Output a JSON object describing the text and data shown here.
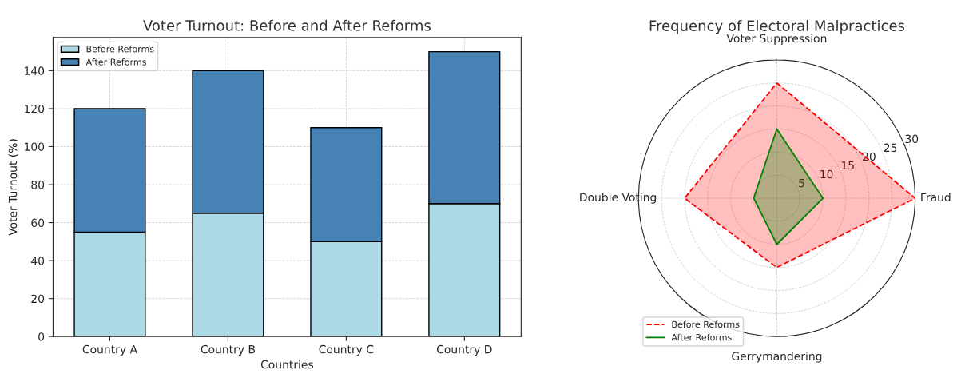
{
  "chart_data": [
    {
      "type": "bar",
      "title": "Voter Turnout: Before and After Reforms",
      "xlabel": "Countries",
      "ylabel": "Voter Turnout (%)",
      "categories": [
        "Country A",
        "Country B",
        "Country C",
        "Country D"
      ],
      "stacked": true,
      "series": [
        {
          "name": "Before Reforms",
          "color": "#add8e6",
          "values": [
            55,
            65,
            50,
            70
          ]
        },
        {
          "name": "After Reforms",
          "color": "#4682b4",
          "values": [
            65,
            75,
            60,
            80
          ]
        }
      ],
      "ylim": [
        0,
        157.5
      ],
      "yticks": [
        0,
        20,
        40,
        60,
        80,
        100,
        120,
        140
      ],
      "grid": true,
      "legend": "top left"
    },
    {
      "type": "radar",
      "title": "Frequency of Electoral Malpractices",
      "categories": [
        "Voter Suppression",
        "Fraud",
        "Gerrymandering",
        "Double Voting"
      ],
      "series": [
        {
          "name": "Before Reforms",
          "color": "#ff0000",
          "values": [
            25,
            30,
            15,
            20
          ],
          "line_style": "dashed"
        },
        {
          "name": "After Reforms",
          "color": "#008000",
          "values": [
            15,
            10,
            10,
            5
          ],
          "line_style": "solid"
        }
      ],
      "ylim": [
        0,
        30
      ],
      "yticks": [
        5,
        10,
        15,
        20,
        25,
        30
      ],
      "grid": true,
      "legend": "bottom left"
    }
  ]
}
